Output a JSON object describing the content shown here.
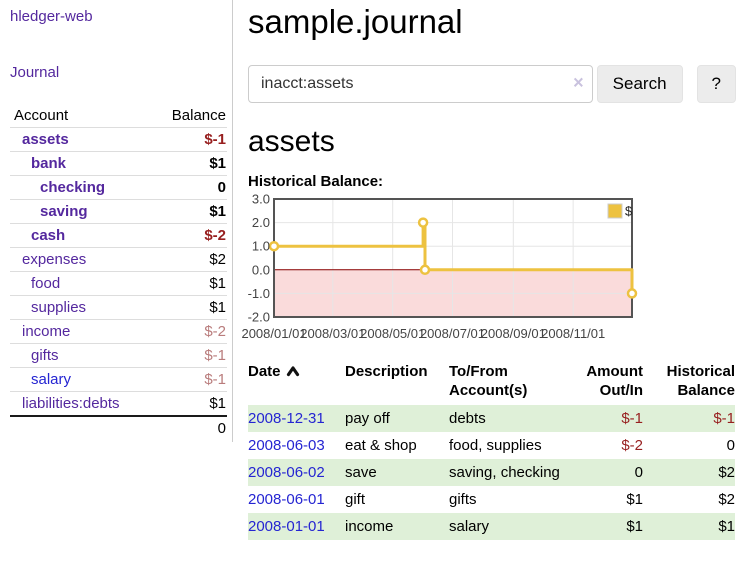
{
  "app": {
    "title": "hledger-web"
  },
  "sidebar": {
    "nav": {
      "journal_label": "Journal"
    },
    "accounts_table": {
      "headers": {
        "account": "Account",
        "balance": "Balance"
      },
      "rows": [
        {
          "account": "assets",
          "depth": 0,
          "bold": true,
          "visited": true,
          "balance": "$-1"
        },
        {
          "account": "bank",
          "depth": 1,
          "bold": true,
          "visited": true,
          "balance": "$1"
        },
        {
          "account": "checking",
          "depth": 2,
          "bold": true,
          "visited": true,
          "balance": "0"
        },
        {
          "account": "saving",
          "depth": 2,
          "bold": true,
          "visited": true,
          "balance": "$1"
        },
        {
          "account": "cash",
          "depth": 1,
          "bold": true,
          "visited": true,
          "balance": "$-2"
        },
        {
          "account": "expenses",
          "depth": 0,
          "bold": false,
          "visited": true,
          "balance": "$2"
        },
        {
          "account": "food",
          "depth": 1,
          "bold": false,
          "visited": true,
          "balance": "$1"
        },
        {
          "account": "supplies",
          "depth": 1,
          "bold": false,
          "visited": true,
          "balance": "$1"
        },
        {
          "account": "income",
          "depth": 0,
          "bold": false,
          "visited": true,
          "balance": "$-2"
        },
        {
          "account": "gifts",
          "depth": 1,
          "bold": false,
          "visited": true,
          "balance": "$-1"
        },
        {
          "account": "salary",
          "depth": 1,
          "bold": false,
          "visited": false,
          "balance": "$-1"
        },
        {
          "account": "liabilities:debts",
          "depth": 0,
          "bold": false,
          "visited": true,
          "balance": "$1"
        }
      ],
      "total": "0"
    }
  },
  "header": {
    "title": "sample.journal"
  },
  "search": {
    "value": "inacct:assets",
    "clear_icon": "×",
    "button_label": "Search",
    "help_label": "?"
  },
  "account_page": {
    "title": "assets",
    "chart_label": "Historical Balance:"
  },
  "chart_data": {
    "type": "line",
    "title": "Historical Balance:",
    "step": true,
    "x_range": [
      "2008-01-01",
      "2008-12-31"
    ],
    "y_range": [
      -2.0,
      3.0
    ],
    "y_ticks": [
      3.0,
      2.0,
      1.0,
      0.0,
      -1.0,
      -2.0
    ],
    "x_ticks": [
      {
        "date": "2008-01-01",
        "label": "2008/01/01"
      },
      {
        "date": "2008-03-01",
        "label": "2008/03/01"
      },
      {
        "date": "2008-05-01",
        "label": "2008/05/01"
      },
      {
        "date": "2008-07-01",
        "label": "2008/07/01"
      },
      {
        "date": "2008-09-01",
        "label": "2008/09/01"
      },
      {
        "date": "2008-11-01",
        "label": "2008/11/01"
      }
    ],
    "series": [
      {
        "name": "$",
        "color": "#edc240",
        "points": [
          [
            "2008-01-01",
            1
          ],
          [
            "2008-06-01",
            2
          ],
          [
            "2008-06-03",
            0
          ],
          [
            "2008-12-31",
            -1
          ]
        ]
      }
    ],
    "legend": {
      "label": "$",
      "position": "top-right"
    },
    "grid": true,
    "negative_region_color": "#fadbdb",
    "zero_line_color": "#8b0000"
  },
  "register_table": {
    "sort": {
      "column": "date",
      "direction": "ascending"
    },
    "headers": {
      "date": "Date",
      "description": "Description",
      "tofrom": "To/From Account(s)",
      "amount": "Amount Out/In",
      "balance": "Historical Balance"
    },
    "rows": [
      {
        "date": "2008-12-31",
        "description": "pay off",
        "accounts": "debts",
        "amount": "$-1",
        "balance": "$-1"
      },
      {
        "date": "2008-06-03",
        "description": "eat & shop",
        "accounts": "food, supplies",
        "amount": "$-2",
        "balance": "0"
      },
      {
        "date": "2008-06-02",
        "description": "save",
        "accounts": "saving, checking",
        "amount": "0",
        "balance": "$2"
      },
      {
        "date": "2008-06-01",
        "description": "gift",
        "accounts": "gifts",
        "amount": "$1",
        "balance": "$2"
      },
      {
        "date": "2008-01-01",
        "description": "income",
        "accounts": "salary",
        "amount": "$1",
        "balance": "$1"
      }
    ]
  },
  "colors": {
    "accent_purple": "#54289e",
    "link_blue": "#2525d2",
    "negative": "#971f1f",
    "negative_muted": "#b97c7c",
    "row_highlight_green": "#dff0d8",
    "chart_series_gold": "#edc240",
    "chart_negative_region_pink": "#fadbdb",
    "chart_zero_line_red": "#8b0000",
    "chart_border_gray": "#545454"
  }
}
